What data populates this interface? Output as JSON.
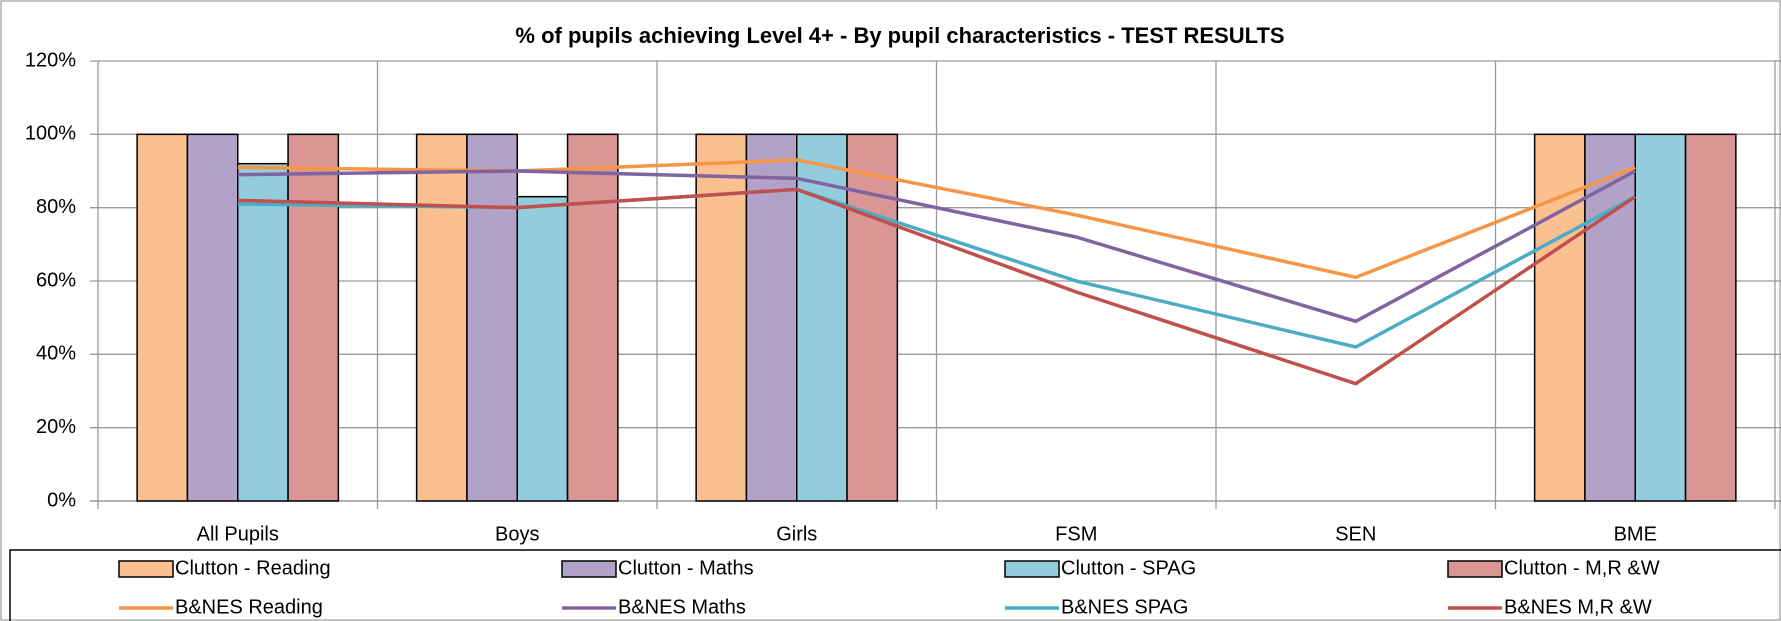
{
  "chart_data": {
    "type": "bar_line",
    "title": "% of pupils achieving Level 4+ - By pupil characteristics - TEST RESULTS",
    "categories": [
      "All Pupils",
      "Boys",
      "Girls",
      "FSM",
      "SEN",
      "BME"
    ],
    "series": [
      {
        "name": "Clutton - Reading",
        "kind": "bar",
        "color": "#fac090",
        "values": [
          100,
          100,
          100,
          null,
          null,
          100
        ]
      },
      {
        "name": "Clutton - Maths",
        "kind": "bar",
        "color": "#b3a2c7",
        "values": [
          100,
          100,
          100,
          null,
          null,
          100
        ]
      },
      {
        "name": "Clutton - SPAG",
        "kind": "bar",
        "color": "#93cddd",
        "values": [
          92,
          83,
          100,
          null,
          null,
          100
        ]
      },
      {
        "name": "Clutton - M,R &W",
        "kind": "bar",
        "color": "#d99694",
        "values": [
          100,
          100,
          100,
          null,
          null,
          100
        ]
      },
      {
        "name": "B&NES Reading",
        "kind": "line",
        "color": "#f79646",
        "values": [
          91,
          90,
          93,
          78,
          61,
          91
        ]
      },
      {
        "name": "B&NES Maths",
        "kind": "line",
        "color": "#8064a2",
        "values": [
          89,
          90,
          88,
          72,
          49,
          90
        ]
      },
      {
        "name": "B&NES SPAG",
        "kind": "line",
        "color": "#4bacc6",
        "values": [
          81,
          80,
          85,
          60,
          42,
          83
        ]
      },
      {
        "name": "B&NES M,R &W",
        "kind": "line",
        "color": "#c0504d",
        "values": [
          82,
          80,
          85,
          57,
          32,
          83
        ]
      }
    ],
    "ylim": [
      0,
      120
    ],
    "yticks": [
      {
        "value": 0,
        "label": "0%"
      },
      {
        "value": 20,
        "label": "20%"
      },
      {
        "value": 40,
        "label": "40%"
      },
      {
        "value": 60,
        "label": "60%"
      },
      {
        "value": 80,
        "label": "80%"
      },
      {
        "value": 100,
        "label": "100%"
      },
      {
        "value": 120,
        "label": "120%"
      }
    ],
    "grid": true,
    "legend": "bottom"
  }
}
